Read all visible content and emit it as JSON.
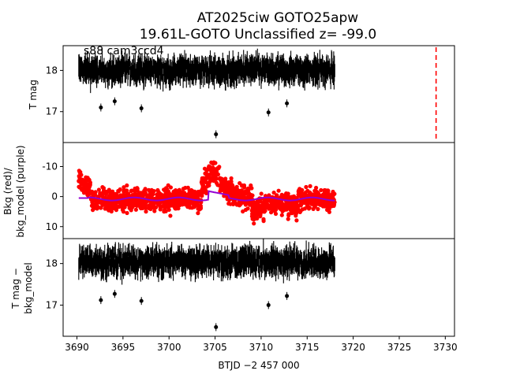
{
  "figure": {
    "title_line1": "AT2025ciw  GOTO25apw",
    "title_line2": "19.61L-GOTO Unclassified z= -99.0"
  },
  "chart_data": [
    {
      "type": "scatter",
      "panel": "top",
      "ylabel": "T mag",
      "y_inverted": true,
      "ylim": [
        18.6,
        16.25
      ],
      "yticks": [
        17,
        18
      ],
      "annotation": "s88 cam3ccd4",
      "x_range_data": [
        3690.2,
        3718.0
      ],
      "baseline_mag": 18.0,
      "scatter_amplitude": 0.35,
      "outliers": [
        {
          "x": 3705.1,
          "y": 16.45
        },
        {
          "x": 3697.0,
          "y": 17.08
        },
        {
          "x": 3710.8,
          "y": 16.98
        },
        {
          "x": 3712.8,
          "y": 17.2
        },
        {
          "x": 3694.1,
          "y": 17.25
        },
        {
          "x": 3692.6,
          "y": 17.1
        }
      ],
      "series": [
        {
          "name": "T mag",
          "color": "#000000"
        }
      ],
      "vline": {
        "x": 3729.0,
        "color": "#ff0000",
        "style": "dashed"
      }
    },
    {
      "type": "scatter",
      "panel": "middle",
      "ylabel_line1": "Bkg (red)/",
      "ylabel_line2": "bkg_model (purple)",
      "ylim": [
        -18,
        14
      ],
      "yticks": [
        10,
        0,
        -10
      ],
      "series": [
        {
          "name": "Bkg",
          "color": "#ff0000"
        },
        {
          "name": "bkg_model",
          "color": "#9400d3"
        }
      ]
    },
    {
      "type": "scatter",
      "panel": "bottom",
      "ylabel_line1": "T mag −",
      "ylabel_line2": "bkg_model",
      "y_inverted": true,
      "ylim": [
        18.6,
        16.25
      ],
      "yticks": [
        17,
        18
      ],
      "series": [
        {
          "name": "T mag - bkg_model",
          "color": "#000000"
        }
      ]
    }
  ],
  "xaxis": {
    "label": "BTJD −2 457 000",
    "xlim": [
      3688.5,
      3731.0
    ],
    "ticks": [
      3690,
      3695,
      3700,
      3705,
      3710,
      3715,
      3720,
      3725,
      3730
    ]
  }
}
